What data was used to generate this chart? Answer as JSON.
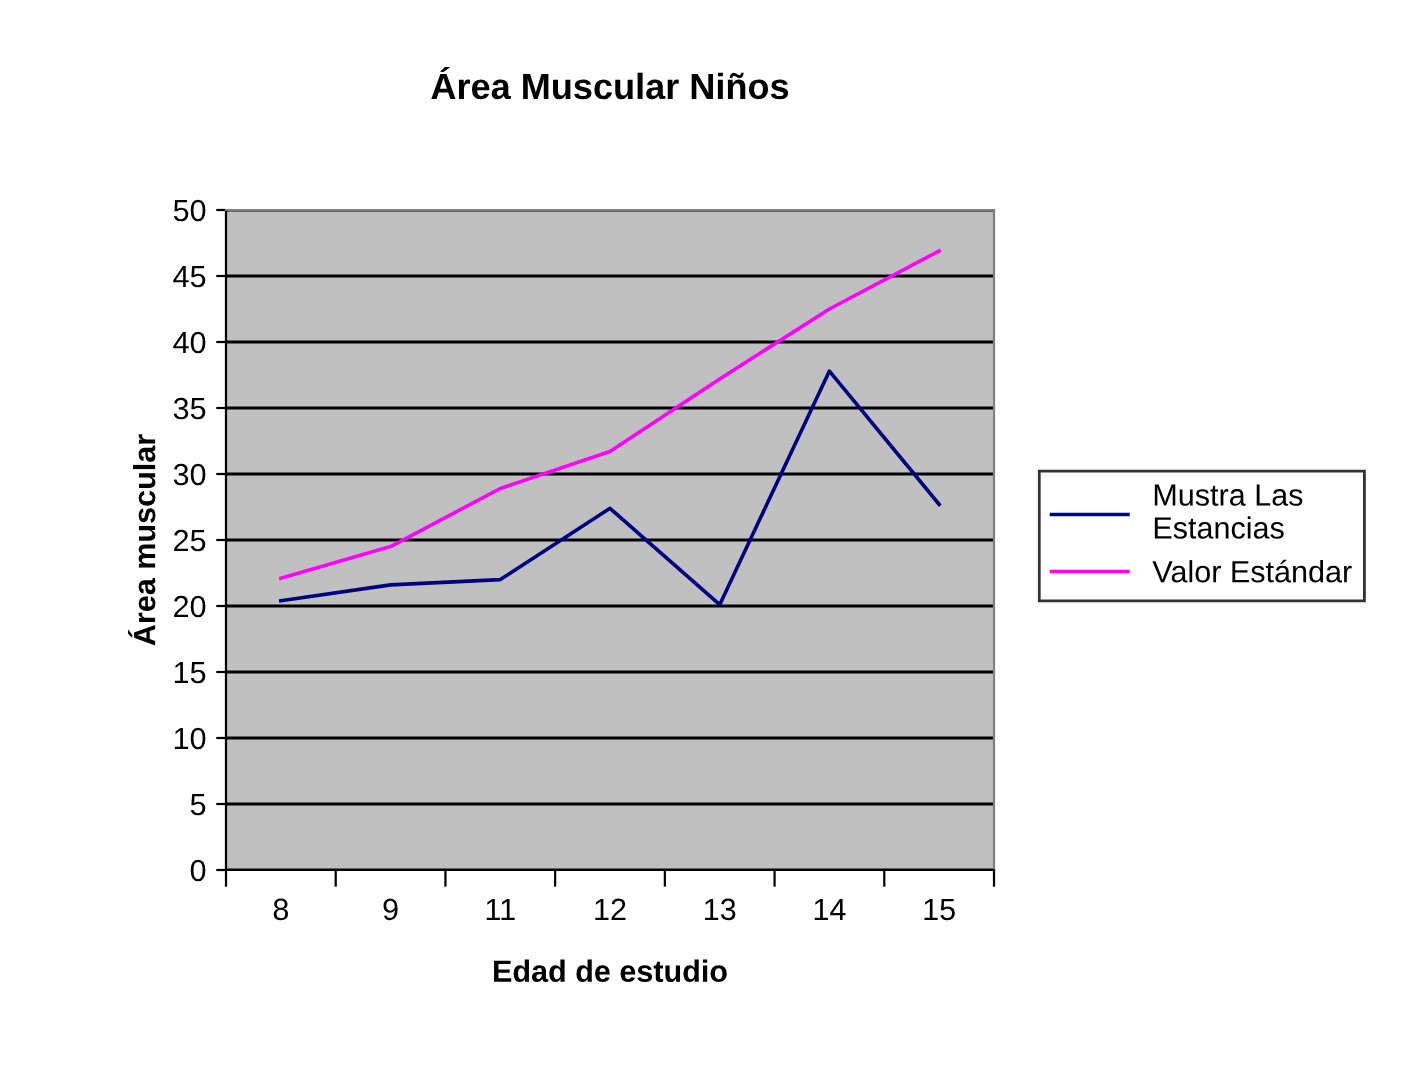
{
  "chart_data": {
    "type": "line",
    "title": "Área Muscular Niños",
    "xlabel": "Edad de estudio",
    "ylabel": "Área muscular",
    "categories": [
      "8",
      "9",
      "11",
      "12",
      "13",
      "14",
      "15"
    ],
    "series": [
      {
        "name": "Mustra Las\nEstancias",
        "color": "#000080",
        "values": [
          20.4,
          21.6,
          22.0,
          27.4,
          20.1,
          37.8,
          27.7
        ]
      },
      {
        "name": "Valor Estándar",
        "color": "#ff00ff",
        "values": [
          22.1,
          24.5,
          28.9,
          31.7,
          37.2,
          42.5,
          46.9
        ]
      }
    ],
    "ylim": [
      0,
      50
    ],
    "yticks": [
      0,
      5,
      10,
      15,
      20,
      25,
      30,
      35,
      40,
      45,
      50
    ],
    "grid": "y",
    "legend": "right",
    "marker": "none"
  }
}
